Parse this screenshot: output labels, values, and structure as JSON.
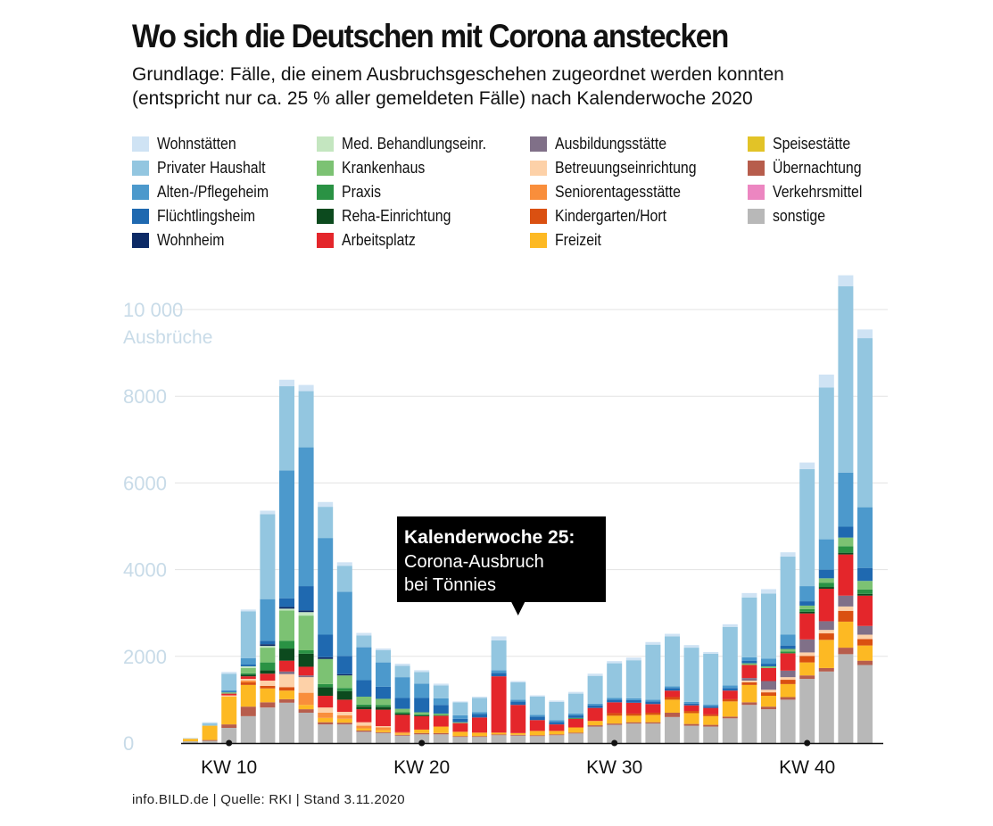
{
  "header": {
    "title": "Wo sich die Deutschen mit Corona anstecken",
    "subtitle_line1": "Grundlage: Fälle, die einem Ausbruchsgeschehen zugeordnet werden konnten",
    "subtitle_line2": "(entspricht nur ca. 25 % aller gemeldeten Fälle) nach Kalenderwoche 2020"
  },
  "footer": {
    "source": "info.BILD.de | Quelle: RKI | Stand 3.11.2020"
  },
  "colors": {
    "wohnstaetten": "#cfe3f4",
    "privater_haushalt": "#93c6e0",
    "alten_pflegeheim": "#4c99cc",
    "fluechtlingsheim": "#1f69b0",
    "wohnheim": "#0c2a66",
    "med_behandlung": "#c4e6c0",
    "krankenhaus": "#7cc273",
    "praxis": "#2a9244",
    "reha": "#0c4a1e",
    "arbeitsplatz": "#e4262b",
    "ausbildungsstaette": "#807088",
    "betreuung": "#fdd1a8",
    "seniorentagesstaette": "#f98e3b",
    "kindergarten": "#da5011",
    "freizeit": "#fdb923",
    "speisestaette": "#e2c327",
    "uebernachtung": "#b75d4c",
    "verkehrsmittel": "#ec86c1",
    "sonstige": "#b8b8b8",
    "grid": "#e3e3e3",
    "tick": "#c8dbe8",
    "callout_bg": "#000000",
    "callout_text": "#ffffff"
  },
  "legend": [
    {
      "label": "Wohnstätten",
      "color_key": "wohnstaetten"
    },
    {
      "label": "Privater Haushalt",
      "color_key": "privater_haushalt"
    },
    {
      "label": "Alten-/Pflegeheim",
      "color_key": "alten_pflegeheim"
    },
    {
      "label": "Flüchtlingsheim",
      "color_key": "fluechtlingsheim"
    },
    {
      "label": "Wohnheim",
      "color_key": "wohnheim"
    },
    {
      "label": "Med. Behandlungseinr.",
      "color_key": "med_behandlung"
    },
    {
      "label": "Krankenhaus",
      "color_key": "krankenhaus"
    },
    {
      "label": "Praxis",
      "color_key": "praxis"
    },
    {
      "label": "Reha-Einrichtung",
      "color_key": "reha"
    },
    {
      "label": "Arbeitsplatz",
      "color_key": "arbeitsplatz"
    },
    {
      "label": "Ausbildungsstätte",
      "color_key": "ausbildungsstaette"
    },
    {
      "label": "Betreuungseinrichtung",
      "color_key": "betreuung"
    },
    {
      "label": "Seniorentagesstätte",
      "color_key": "seniorentagesstaette"
    },
    {
      "label": "Kindergarten/Hort",
      "color_key": "kindergarten"
    },
    {
      "label": "Freizeit",
      "color_key": "freizeit"
    },
    {
      "label": "Speisestätte",
      "color_key": "speisestaette"
    },
    {
      "label": "Übernachtung",
      "color_key": "uebernachtung"
    },
    {
      "label": "Verkehrsmittel",
      "color_key": "verkehrsmittel"
    },
    {
      "label": "sonstige",
      "color_key": "sonstige"
    }
  ],
  "chart_data": {
    "type": "bar",
    "stacked": true,
    "title": "Wo sich die Deutschen mit Corona anstecken",
    "ylabel": "Ausbrüche",
    "ylim": [
      0,
      10500
    ],
    "y_ticks": [
      {
        "value": 0,
        "label": "0"
      },
      {
        "value": 2000,
        "label": "2000"
      },
      {
        "value": 4000,
        "label": "4000"
      },
      {
        "value": 6000,
        "label": "6000"
      },
      {
        "value": 8000,
        "label": "8000"
      },
      {
        "value": 10000,
        "label": "10 000"
      }
    ],
    "y_unit_label": "Ausbrüche",
    "x_week_start": 8,
    "x_ticks": [
      {
        "week": 10,
        "label": "KW 10"
      },
      {
        "week": 20,
        "label": "KW 20"
      },
      {
        "week": 30,
        "label": "KW 30"
      },
      {
        "week": 40,
        "label": "KW 40"
      }
    ],
    "annotation": {
      "week": 25,
      "title": "Kalenderwoche 25:",
      "line1": "Corona-Ausbruch",
      "line2": "bei Tönnies"
    },
    "stack_order": [
      "sonstige",
      "uebernachtung",
      "verkehrsmittel",
      "speisestaette",
      "freizeit",
      "kindergarten",
      "seniorentagesstaette",
      "betreuung",
      "ausbildungsstaette",
      "arbeitsplatz",
      "reha",
      "praxis",
      "krankenhaus",
      "med_behandlung",
      "wohnheim",
      "fluechtlingsheim",
      "alten_pflegeheim",
      "privater_haushalt",
      "wohnstaetten"
    ],
    "weeks": [
      {
        "week": 8,
        "values": {
          "sonstige": 40,
          "freizeit": 60,
          "wohnstaetten": 20
        }
      },
      {
        "week": 9,
        "values": {
          "sonstige": 50,
          "uebernachtung": 20,
          "freizeit": 330,
          "privater_haushalt": 60,
          "wohnstaetten": 20
        }
      },
      {
        "week": 10,
        "values": {
          "sonstige": 350,
          "uebernachtung": 80,
          "freizeit": 640,
          "betreuung": 30,
          "arbeitsplatz": 40,
          "krankenhaus": 30,
          "fluechtlingsheim": 20,
          "alten_pflegeheim": 30,
          "privater_haushalt": 380,
          "wohnstaetten": 40
        }
      },
      {
        "week": 11,
        "values": {
          "sonstige": 620,
          "uebernachtung": 220,
          "freizeit": 500,
          "kindergarten": 60,
          "seniorentagesstaette": 40,
          "betreuung": 40,
          "arbeitsplatz": 60,
          "reha": 40,
          "praxis": 30,
          "krankenhaus": 120,
          "med_behandlung": 40,
          "fluechtlingsheim": 40,
          "alten_pflegeheim": 150,
          "privater_haushalt": 1080,
          "wohnstaetten": 40
        }
      },
      {
        "week": 12,
        "values": {
          "sonstige": 820,
          "uebernachtung": 120,
          "freizeit": 320,
          "kindergarten": 60,
          "betreuung": 120,
          "arbeitsplatz": 160,
          "reha": 80,
          "praxis": 180,
          "krankenhaus": 340,
          "med_behandlung": 40,
          "wohnheim": 40,
          "fluechtlingsheim": 80,
          "alten_pflegeheim": 960,
          "privater_haushalt": 1960,
          "wohnstaetten": 80
        }
      },
      {
        "week": 13,
        "values": {
          "sonstige": 930,
          "uebernachtung": 80,
          "freizeit": 200,
          "kindergarten": 80,
          "betreuung": 300,
          "ausbildungsstaette": 60,
          "arbeitsplatz": 250,
          "reha": 280,
          "praxis": 180,
          "krankenhaus": 700,
          "med_behandlung": 40,
          "wohnheim": 40,
          "fluechtlingsheim": 200,
          "alten_pflegeheim": 2950,
          "privater_haushalt": 1940,
          "wohnstaetten": 150
        }
      },
      {
        "week": 14,
        "values": {
          "sonstige": 700,
          "uebernachtung": 80,
          "freizeit": 100,
          "seniorentagesstaette": 280,
          "betreuung": 360,
          "ausbildungsstaette": 40,
          "arbeitsplatz": 200,
          "reha": 300,
          "praxis": 80,
          "krankenhaus": 800,
          "med_behandlung": 80,
          "wohnheim": 40,
          "fluechtlingsheim": 560,
          "alten_pflegeheim": 3200,
          "privater_haushalt": 1300,
          "wohnstaetten": 140
        }
      },
      {
        "week": 15,
        "values": {
          "sonstige": 430,
          "uebernachtung": 50,
          "freizeit": 100,
          "seniorentagesstaette": 120,
          "betreuung": 120,
          "arbeitsplatz": 270,
          "reha": 200,
          "praxis": 70,
          "krankenhaus": 580,
          "wohnheim": 40,
          "fluechtlingsheim": 520,
          "alten_pflegeheim": 2230,
          "privater_haushalt": 720,
          "wohnstaetten": 110
        }
      },
      {
        "week": 16,
        "values": {
          "sonstige": 430,
          "uebernachtung": 40,
          "freizeit": 90,
          "seniorentagesstaette": 80,
          "betreuung": 80,
          "arbeitsplatz": 280,
          "reha": 200,
          "praxis": 70,
          "krankenhaus": 290,
          "wohnheim": 30,
          "fluechtlingsheim": 420,
          "alten_pflegeheim": 1480,
          "privater_haushalt": 600,
          "wohnstaetten": 80
        }
      },
      {
        "week": 17,
        "values": {
          "sonstige": 260,
          "uebernachtung": 30,
          "freizeit": 50,
          "seniorentagesstaette": 60,
          "betreuung": 80,
          "arbeitsplatz": 300,
          "reha": 60,
          "praxis": 50,
          "krankenhaus": 180,
          "fluechtlingsheim": 380,
          "alten_pflegeheim": 760,
          "privater_haushalt": 270,
          "wohnstaetten": 60
        }
      },
      {
        "week": 18,
        "values": {
          "sonstige": 230,
          "uebernachtung": 20,
          "freizeit": 50,
          "seniorentagesstaette": 60,
          "betreuung": 30,
          "arbeitsplatz": 380,
          "reha": 60,
          "praxis": 50,
          "krankenhaus": 140,
          "fluechtlingsheim": 280,
          "alten_pflegeheim": 560,
          "privater_haushalt": 280,
          "wohnstaetten": 40
        }
      },
      {
        "week": 19,
        "values": {
          "sonstige": 170,
          "uebernachtung": 20,
          "freizeit": 30,
          "seniorentagesstaette": 30,
          "arbeitsplatz": 400,
          "reha": 30,
          "praxis": 30,
          "krankenhaus": 80,
          "fluechtlingsheim": 250,
          "alten_pflegeheim": 480,
          "privater_haushalt": 260,
          "wohnstaetten": 50
        }
      },
      {
        "week": 20,
        "values": {
          "sonstige": 200,
          "uebernachtung": 30,
          "freizeit": 80,
          "arbeitsplatz": 310,
          "reha": 20,
          "praxis": 20,
          "krankenhaus": 50,
          "fluechtlingsheim": 330,
          "alten_pflegeheim": 330,
          "privater_haushalt": 270,
          "wohnstaetten": 40
        }
      },
      {
        "week": 21,
        "values": {
          "sonstige": 200,
          "uebernachtung": 30,
          "freizeit": 150,
          "arbeitsplatz": 250,
          "praxis": 20,
          "krankenhaus": 30,
          "fluechtlingsheim": 200,
          "alten_pflegeheim": 150,
          "privater_haushalt": 300,
          "wohnstaetten": 40
        }
      },
      {
        "week": 22,
        "values": {
          "sonstige": 140,
          "uebernachtung": 20,
          "freizeit": 100,
          "arbeitsplatz": 200,
          "krankenhaus": 20,
          "fluechtlingsheim": 80,
          "alten_pflegeheim": 80,
          "privater_haushalt": 300,
          "wohnstaetten": 20
        }
      },
      {
        "week": 23,
        "values": {
          "sonstige": 140,
          "uebernachtung": 20,
          "freizeit": 80,
          "arbeitsplatz": 350,
          "fluechtlingsheim": 80,
          "alten_pflegeheim": 40,
          "privater_haushalt": 330,
          "wohnstaetten": 30
        }
      },
      {
        "week": 24,
        "values": {
          "sonstige": 180,
          "uebernachtung": 20,
          "freizeit": 40,
          "arbeitsplatz": 1300,
          "fluechtlingsheim": 80,
          "alten_pflegeheim": 60,
          "privater_haushalt": 690,
          "wohnstaetten": 90
        }
      },
      {
        "week": 25,
        "values": {
          "sonstige": 170,
          "uebernachtung": 20,
          "freizeit": 40,
          "arbeitsplatz": 650,
          "fluechtlingsheim": 80,
          "alten_pflegeheim": 40,
          "privater_haushalt": 400,
          "wohnstaetten": 30
        }
      },
      {
        "week": 26,
        "values": {
          "sonstige": 160,
          "uebernachtung": 20,
          "freizeit": 100,
          "arbeitsplatz": 250,
          "fluechtlingsheim": 80,
          "alten_pflegeheim": 40,
          "privater_haushalt": 420,
          "wohnstaetten": 30
        }
      },
      {
        "week": 27,
        "values": {
          "sonstige": 180,
          "uebernachtung": 20,
          "freizeit": 80,
          "arbeitsplatz": 150,
          "fluechtlingsheim": 60,
          "alten_pflegeheim": 40,
          "privater_haushalt": 420,
          "wohnstaetten": 30
        }
      },
      {
        "week": 28,
        "values": {
          "sonstige": 220,
          "uebernachtung": 20,
          "freizeit": 120,
          "arbeitsplatz": 200,
          "praxis": 20,
          "fluechtlingsheim": 60,
          "alten_pflegeheim": 40,
          "privater_haushalt": 460,
          "wohnstaetten": 40
        }
      },
      {
        "week": 29,
        "values": {
          "sonstige": 380,
          "uebernachtung": 30,
          "freizeit": 100,
          "arbeitsplatz": 300,
          "fluechtlingsheim": 60,
          "alten_pflegeheim": 40,
          "privater_haushalt": 640,
          "wohnstaetten": 50
        }
      },
      {
        "week": 30,
        "values": {
          "sonstige": 420,
          "uebernachtung": 30,
          "freizeit": 180,
          "kindergarten": 60,
          "arbeitsplatz": 250,
          "fluechtlingsheim": 60,
          "alten_pflegeheim": 40,
          "privater_haushalt": 800,
          "wohnstaetten": 50
        }
      },
      {
        "week": 31,
        "values": {
          "sonstige": 450,
          "uebernachtung": 30,
          "freizeit": 150,
          "kindergarten": 50,
          "arbeitsplatz": 250,
          "fluechtlingsheim": 60,
          "alten_pflegeheim": 40,
          "privater_haushalt": 880,
          "wohnstaetten": 60
        }
      },
      {
        "week": 32,
        "values": {
          "sonstige": 450,
          "uebernachtung": 30,
          "freizeit": 170,
          "kindergarten": 50,
          "arbeitsplatz": 200,
          "fluechtlingsheim": 60,
          "alten_pflegeheim": 40,
          "privater_haushalt": 1270,
          "wohnstaetten": 60
        }
      },
      {
        "week": 33,
        "values": {
          "sonstige": 600,
          "uebernachtung": 100,
          "freizeit": 300,
          "kindergarten": 60,
          "arbeitsplatz": 150,
          "fluechtlingsheim": 60,
          "alten_pflegeheim": 40,
          "privater_haushalt": 1150,
          "wohnstaetten": 60
        }
      },
      {
        "week": 34,
        "values": {
          "sonstige": 400,
          "uebernachtung": 40,
          "freizeit": 250,
          "kindergarten": 50,
          "arbeitsplatz": 130,
          "fluechtlingsheim": 40,
          "alten_pflegeheim": 40,
          "privater_haushalt": 1250,
          "wohnstaetten": 60
        }
      },
      {
        "week": 35,
        "values": {
          "sonstige": 380,
          "uebernachtung": 40,
          "freizeit": 200,
          "kindergarten": 40,
          "arbeitsplatz": 150,
          "fluechtlingsheim": 40,
          "alten_pflegeheim": 40,
          "privater_haushalt": 1170,
          "wohnstaetten": 40
        }
      },
      {
        "week": 36,
        "values": {
          "sonstige": 570,
          "uebernachtung": 40,
          "freizeit": 350,
          "kindergarten": 50,
          "arbeitsplatz": 200,
          "fluechtlingsheim": 60,
          "alten_pflegeheim": 60,
          "privater_haushalt": 1350,
          "wohnstaetten": 60
        }
      },
      {
        "week": 37,
        "values": {
          "sonstige": 880,
          "uebernachtung": 60,
          "freizeit": 400,
          "kindergarten": 60,
          "betreuung": 40,
          "arbeitsplatz": 300,
          "ausbildungsstaette": 60,
          "krankenhaus": 40,
          "fluechtlingsheim": 60,
          "alten_pflegeheim": 80,
          "privater_haushalt": 1380,
          "wohnstaetten": 100
        }
      },
      {
        "week": 38,
        "values": {
          "sonstige": 780,
          "uebernachtung": 60,
          "freizeit": 250,
          "kindergarten": 80,
          "betreuung": 60,
          "ausbildungsstaette": 200,
          "arbeitsplatz": 300,
          "krankenhaus": 40,
          "fluechtlingsheim": 60,
          "alten_pflegeheim": 120,
          "privater_haushalt": 1500,
          "wohnstaetten": 100
        }
      },
      {
        "week": 39,
        "values": {
          "sonstige": 1000,
          "uebernachtung": 60,
          "freizeit": 300,
          "kindergarten": 100,
          "betreuung": 60,
          "ausbildungsstaette": 150,
          "arbeitsplatz": 400,
          "praxis": 40,
          "krankenhaus": 60,
          "fluechtlingsheim": 80,
          "alten_pflegeheim": 250,
          "privater_haushalt": 1800,
          "wohnstaetten": 100
        }
      },
      {
        "week": 40,
        "values": {
          "sonstige": 1480,
          "uebernachtung": 80,
          "freizeit": 300,
          "kindergarten": 150,
          "betreuung": 80,
          "ausbildungsstaette": 300,
          "arbeitsplatz": 600,
          "reha": 40,
          "praxis": 60,
          "krankenhaus": 80,
          "fluechtlingsheim": 100,
          "alten_pflegeheim": 350,
          "privater_haushalt": 2700,
          "wohnstaetten": 150
        }
      },
      {
        "week": 41,
        "values": {
          "sonstige": 1650,
          "uebernachtung": 80,
          "freizeit": 650,
          "kindergarten": 150,
          "betreuung": 80,
          "ausbildungsstaette": 200,
          "arbeitsplatz": 750,
          "reha": 40,
          "praxis": 100,
          "krankenhaus": 100,
          "fluechtlingsheim": 200,
          "alten_pflegeheim": 700,
          "privater_haushalt": 3500,
          "wohnstaetten": 300
        }
      },
      {
        "week": 42,
        "values": {
          "sonstige": 2050,
          "uebernachtung": 150,
          "freizeit": 600,
          "kindergarten": 250,
          "betreuung": 100,
          "ausbildungsstaette": 250,
          "arbeitsplatz": 950,
          "reha": 40,
          "praxis": 150,
          "krankenhaus": 200,
          "fluechtlingsheim": 250,
          "alten_pflegeheim": 1250,
          "privater_haushalt": 4300,
          "wohnstaetten": 250
        }
      },
      {
        "week": 43,
        "values": {
          "sonstige": 1800,
          "uebernachtung": 100,
          "freizeit": 350,
          "kindergarten": 150,
          "betreuung": 100,
          "ausbildungsstaette": 200,
          "arbeitsplatz": 700,
          "reha": 40,
          "praxis": 100,
          "krankenhaus": 200,
          "fluechtlingsheim": 300,
          "alten_pflegeheim": 1400,
          "privater_haushalt": 3900,
          "wohnstaetten": 200
        }
      }
    ]
  }
}
